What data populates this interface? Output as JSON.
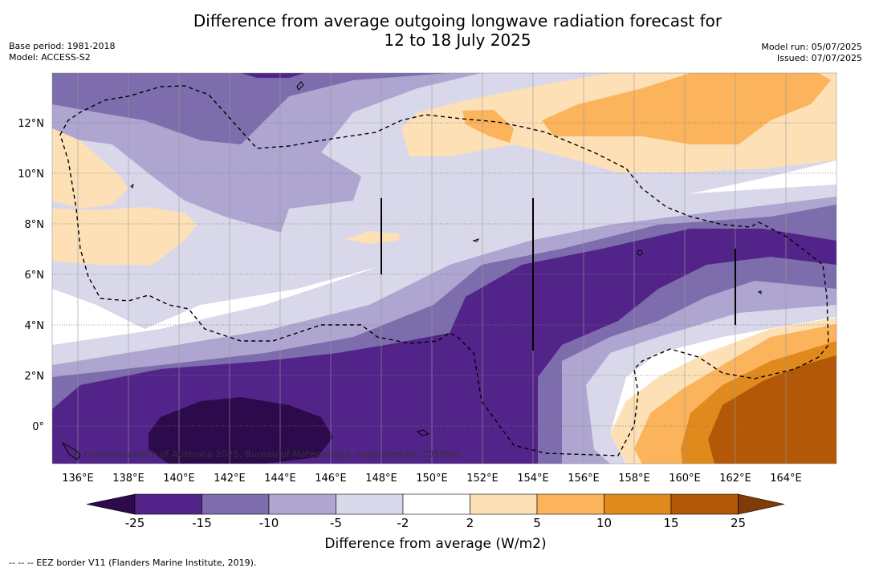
{
  "title_line1": "Difference from average outgoing longwave radiation forecast for",
  "title_line2": "12 to 18 July 2025",
  "base_period": "Base period: 1981-2018",
  "model": "Model: ACCESS-S2",
  "model_run": "Model run: 05/07/2025",
  "issued": "Issued: 07/07/2025",
  "copyright": "© Commonwealth of Australia 2025, Bureau of Meteorology, supported by COSPPac",
  "lon_labels": [
    "136°E",
    "138°E",
    "140°E",
    "142°E",
    "144°E",
    "146°E",
    "148°E",
    "150°E",
    "152°E",
    "154°E",
    "156°E",
    "158°E",
    "160°E",
    "162°E",
    "164°E"
  ],
  "lat_labels": [
    "12°N",
    "10°N",
    "8°N",
    "6°N",
    "4°N",
    "2°N",
    "0°"
  ],
  "colorbar": {
    "ticks": [
      "-25",
      "-15",
      "-10",
      "-5",
      "-2",
      "2",
      "5",
      "10",
      "15",
      "25"
    ],
    "colors": [
      "#2c0a4b",
      "#52248a",
      "#7d6dac",
      "#aea6d0",
      "#d9d8ea",
      "#ffffff",
      "#fde0b6",
      "#fbb45c",
      "#e08a1e",
      "#b35806",
      "#7f3b08"
    ],
    "title": "Difference from average (W/m2)"
  },
  "footnote": "--  --  -- EEZ border V11 (Flanders Marine Institute, 2019)."
}
